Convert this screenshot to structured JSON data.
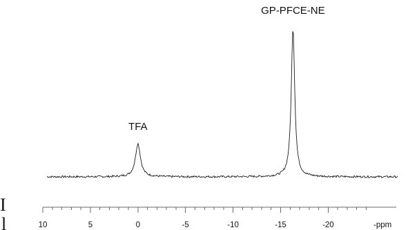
{
  "chart_data": {
    "type": "line",
    "title": "",
    "xlabel": "",
    "ylabel": "",
    "x_unit": "-ppm",
    "x_reversed": true,
    "xlim": [
      10,
      -24
    ],
    "x_ticks": [
      10,
      5,
      0,
      -5,
      -10,
      -15,
      -20
    ],
    "x_tick_labels": [
      "10",
      "5",
      "0",
      "-5",
      "-10",
      "-15",
      "-20"
    ],
    "minor_tick_step": 1,
    "grid": false,
    "legend": "none",
    "series": [
      {
        "peaks": [
          {
            "label": "TFA",
            "x": 0.0,
            "height": 0.2
          },
          {
            "label": "GP-PFCE-NE",
            "x": -16.3,
            "height": 0.9
          }
        ],
        "baseline": 0.0,
        "color": "#1a1a1a"
      }
    ]
  },
  "edge_fragments": [
    "I",
    "l"
  ]
}
